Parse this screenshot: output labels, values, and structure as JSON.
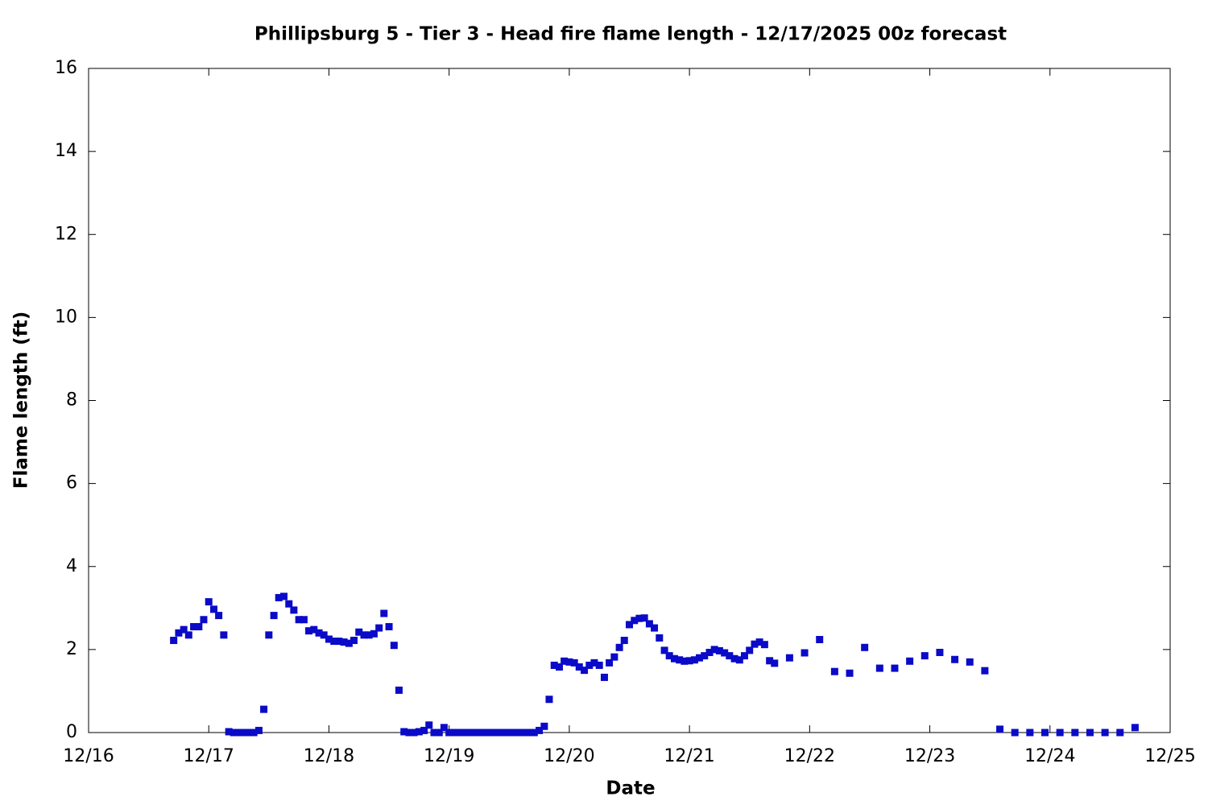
{
  "chart_data": {
    "type": "scatter",
    "title": "Phillipsburg 5 - Tier 3 - Head fire flame length - 12/17/2025 00z forecast",
    "xlabel": "Date",
    "ylabel": "Flame length (ft)",
    "color": "#0a0ac8",
    "xlim": [
      0,
      9
    ],
    "xticks": [
      {
        "value": 0,
        "label": "12/16"
      },
      {
        "value": 1,
        "label": "12/17"
      },
      {
        "value": 2,
        "label": "12/18"
      },
      {
        "value": 3,
        "label": "12/19"
      },
      {
        "value": 4,
        "label": "12/20"
      },
      {
        "value": 5,
        "label": "12/21"
      },
      {
        "value": 6,
        "label": "12/22"
      },
      {
        "value": 7,
        "label": "12/23"
      },
      {
        "value": 8,
        "label": "12/24"
      },
      {
        "value": 9,
        "label": "12/25"
      }
    ],
    "ylim": [
      0,
      16
    ],
    "yticks": [
      0,
      2,
      4,
      6,
      8,
      10,
      12,
      14,
      16
    ],
    "x": [
      0.708,
      0.75,
      0.792,
      0.833,
      0.875,
      0.917,
      0.958,
      1,
      1.042,
      1.083,
      1.125,
      1.167,
      1.208,
      1.25,
      1.292,
      1.333,
      1.375,
      1.417,
      1.458,
      1.5,
      1.542,
      1.583,
      1.625,
      1.667,
      1.708,
      1.75,
      1.792,
      1.833,
      1.875,
      1.917,
      1.958,
      2,
      2.042,
      2.083,
      2.125,
      2.167,
      2.208,
      2.25,
      2.292,
      2.333,
      2.375,
      2.417,
      2.458,
      2.5,
      2.542,
      2.583,
      2.625,
      2.667,
      2.708,
      2.75,
      2.792,
      2.833,
      2.875,
      2.917,
      2.958,
      3,
      3.042,
      3.083,
      3.125,
      3.167,
      3.208,
      3.25,
      3.292,
      3.333,
      3.375,
      3.417,
      3.458,
      3.5,
      3.542,
      3.583,
      3.625,
      3.667,
      3.708,
      3.75,
      3.792,
      3.833,
      3.875,
      3.917,
      3.958,
      4,
      4.042,
      4.083,
      4.125,
      4.167,
      4.208,
      4.25,
      4.292,
      4.333,
      4.375,
      4.417,
      4.458,
      4.5,
      4.542,
      4.583,
      4.625,
      4.667,
      4.708,
      4.75,
      4.792,
      4.833,
      4.875,
      4.917,
      4.958,
      5,
      5.042,
      5.083,
      5.125,
      5.167,
      5.208,
      5.25,
      5.292,
      5.333,
      5.375,
      5.417,
      5.458,
      5.5,
      5.542,
      5.583,
      5.625,
      5.667,
      5.708,
      5.833,
      5.958,
      6.083,
      6.208,
      6.333,
      6.458,
      6.583,
      6.708,
      6.833,
      6.958,
      7.083,
      7.208,
      7.333,
      7.458,
      7.583,
      7.708,
      7.833,
      7.958,
      8.083,
      8.208,
      8.333,
      8.458,
      8.583,
      8.708
    ],
    "values": [
      2.22,
      2.4,
      2.48,
      2.35,
      2.55,
      2.55,
      2.72,
      3.15,
      2.97,
      2.82,
      2.35,
      0.02,
      0,
      0,
      0,
      0,
      0,
      0.05,
      0.56,
      2.35,
      2.82,
      3.25,
      3.28,
      3.1,
      2.95,
      2.72,
      2.72,
      2.45,
      2.48,
      2.4,
      2.35,
      2.25,
      2.2,
      2.2,
      2.18,
      2.15,
      2.22,
      2.42,
      2.35,
      2.35,
      2.38,
      2.52,
      2.87,
      2.55,
      2.1,
      1.02,
      0.02,
      0,
      0,
      0.02,
      0.05,
      0.18,
      0,
      0,
      0.12,
      0,
      0,
      0,
      0,
      0,
      0,
      0,
      0,
      0,
      0,
      0,
      0,
      0,
      0,
      0,
      0,
      0,
      0,
      0.05,
      0.15,
      0.8,
      1.62,
      1.58,
      1.72,
      1.7,
      1.68,
      1.58,
      1.5,
      1.62,
      1.68,
      1.62,
      1.33,
      1.68,
      1.82,
      2.05,
      2.22,
      2.6,
      2.7,
      2.75,
      2.76,
      2.62,
      2.52,
      2.28,
      1.98,
      1.85,
      1.78,
      1.75,
      1.72,
      1.73,
      1.75,
      1.8,
      1.85,
      1.93,
      2.0,
      1.97,
      1.92,
      1.85,
      1.78,
      1.75,
      1.85,
      1.98,
      2.13,
      2.18,
      2.12,
      1.73,
      1.67,
      1.8,
      1.92,
      2.24,
      1.47,
      1.43,
      2.05,
      1.55,
      1.55,
      1.72,
      1.85,
      1.93,
      1.76,
      1.7,
      1.49,
      0.08,
      0,
      0,
      0,
      0,
      0,
      0,
      0,
      0,
      0.12
    ]
  }
}
